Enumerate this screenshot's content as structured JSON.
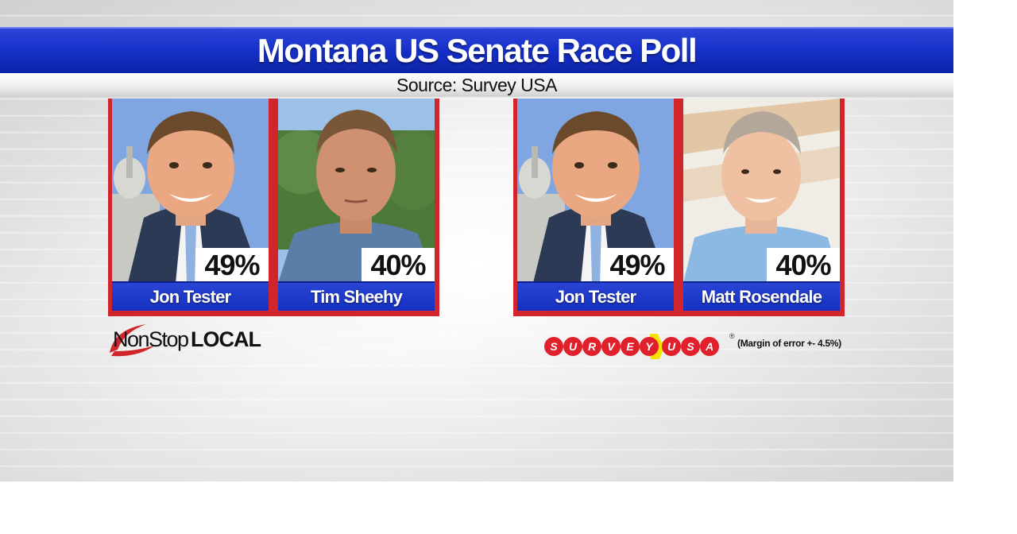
{
  "header": {
    "title": "Montana US Senate Race Poll",
    "source": "Source: Survey USA"
  },
  "matchups": [
    {
      "candidates": [
        {
          "name": "Jon Tester",
          "pct": "49%",
          "photo_icon": "portrait-smiling-man-capitol"
        },
        {
          "name": "Tim Sheehy",
          "pct": "40%",
          "photo_icon": "portrait-man-outdoors"
        }
      ]
    },
    {
      "candidates": [
        {
          "name": "Jon Tester",
          "pct": "49%",
          "photo_icon": "portrait-smiling-man-capitol"
        },
        {
          "name": "Matt Rosendale",
          "pct": "40%",
          "photo_icon": "portrait-man-light-background"
        }
      ]
    }
  ],
  "logos": {
    "station": {
      "part1": "NonStop",
      "part2": "LOCAL"
    },
    "pollster": {
      "letters": [
        "S",
        "U",
        "R",
        "V",
        "E",
        "Y",
        "U",
        "S",
        "A"
      ],
      "reg": "®",
      "margin": "(Margin of error +- 4.5%)"
    }
  },
  "colors": {
    "title_blue": "#1530c9",
    "frame_red": "#d0252b",
    "name_blue": "#1530c0",
    "survey_red": "#e0202a",
    "survey_yellow": "#f5e200"
  }
}
